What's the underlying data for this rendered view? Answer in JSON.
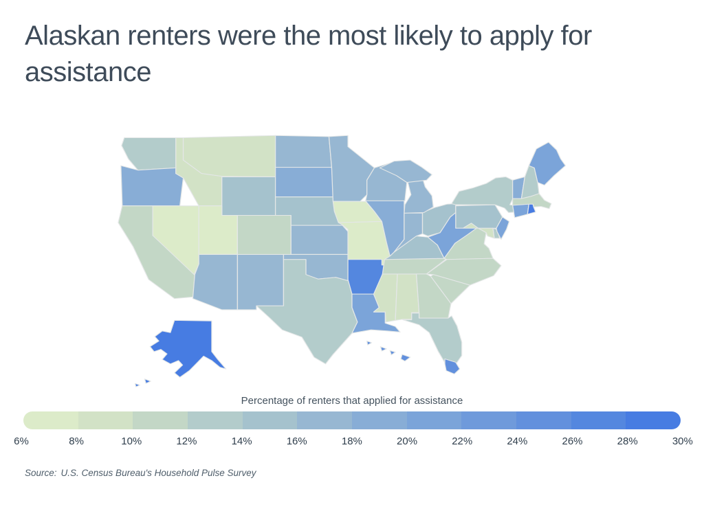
{
  "title": "Alaskan renters were the most likely to apply for assistance",
  "legend": {
    "caption": "Percentage of renters that applied for assistance",
    "min": 6,
    "max": 30,
    "bin_size": 2,
    "bin_colors": [
      "#dcebc9",
      "#d2e2c6",
      "#c3d7c6",
      "#b3cccb",
      "#a5c2cd",
      "#97b7d2",
      "#88add6",
      "#7ba4d9",
      "#6f9adb",
      "#6290dd",
      "#5487df",
      "#477ce2"
    ],
    "tick_labels": [
      "6%",
      "8%",
      "10%",
      "12%",
      "14%",
      "16%",
      "18%",
      "20%",
      "22%",
      "24%",
      "26%",
      "28%",
      "30%"
    ]
  },
  "source": {
    "prefix": "Source:",
    "text": "U.S. Census Bureau's Household Pulse Survey"
  },
  "colors": {
    "title_text": "#3e4b59",
    "caption_text": "#44525e",
    "tick_text": "#2f3e4c",
    "source_text": "#4e5d6a",
    "state_border": "#e4e7e7",
    "scale_low": "#dcebc9",
    "scale_high": "#477ce2",
    "background": "#ffffff"
  },
  "chart_data": {
    "type": "choropleth-map",
    "region": "United States (50 states)",
    "metric": "Percentage of renters that applied for assistance",
    "unit": "%",
    "range": [
      6,
      30
    ],
    "legend_position": "bottom",
    "highlight": "Alaska (highest)",
    "states": [
      {
        "code": "AK",
        "name": "Alaska",
        "value": 30
      },
      {
        "code": "AL",
        "name": "Alabama",
        "value": 9
      },
      {
        "code": "AR",
        "name": "Arkansas",
        "value": 27
      },
      {
        "code": "AZ",
        "name": "Arizona",
        "value": 16
      },
      {
        "code": "CA",
        "name": "California",
        "value": 11
      },
      {
        "code": "CO",
        "name": "Colorado",
        "value": 11
      },
      {
        "code": "CT",
        "name": "Connecticut",
        "value": 21
      },
      {
        "code": "DE",
        "name": "Delaware",
        "value": 12
      },
      {
        "code": "FL",
        "name": "Florida",
        "value": 12
      },
      {
        "code": "GA",
        "name": "Georgia",
        "value": 11
      },
      {
        "code": "HI",
        "name": "Hawaii",
        "value": 25
      },
      {
        "code": "IA",
        "name": "Iowa",
        "value": 7
      },
      {
        "code": "ID",
        "name": "Idaho",
        "value": 9
      },
      {
        "code": "IL",
        "name": "Illinois",
        "value": 19
      },
      {
        "code": "IN",
        "name": "Indiana",
        "value": 16
      },
      {
        "code": "KS",
        "name": "Kansas",
        "value": 17
      },
      {
        "code": "KY",
        "name": "Kentucky",
        "value": 14
      },
      {
        "code": "LA",
        "name": "Louisiana",
        "value": 21
      },
      {
        "code": "MA",
        "name": "Massachusetts",
        "value": 10
      },
      {
        "code": "MD",
        "name": "Maryland",
        "value": 8
      },
      {
        "code": "ME",
        "name": "Maine",
        "value": 21
      },
      {
        "code": "MI",
        "name": "Michigan",
        "value": 17
      },
      {
        "code": "MN",
        "name": "Minnesota",
        "value": 17
      },
      {
        "code": "MO",
        "name": "Missouri",
        "value": 7
      },
      {
        "code": "MS",
        "name": "Mississippi",
        "value": 9
      },
      {
        "code": "MT",
        "name": "Montana",
        "value": 9
      },
      {
        "code": "NC",
        "name": "North Carolina",
        "value": 11
      },
      {
        "code": "ND",
        "name": "North Dakota",
        "value": 17
      },
      {
        "code": "NE",
        "name": "Nebraska",
        "value": 14
      },
      {
        "code": "NH",
        "name": "New Hampshire",
        "value": 12
      },
      {
        "code": "NJ",
        "name": "New Jersey",
        "value": 20
      },
      {
        "code": "NM",
        "name": "New Mexico",
        "value": 16
      },
      {
        "code": "NV",
        "name": "Nevada",
        "value": 6
      },
      {
        "code": "NY",
        "name": "New York",
        "value": 13
      },
      {
        "code": "OH",
        "name": "Ohio",
        "value": 14
      },
      {
        "code": "OK",
        "name": "Oklahoma",
        "value": 16
      },
      {
        "code": "OR",
        "name": "Oregon",
        "value": 19
      },
      {
        "code": "PA",
        "name": "Pennsylvania",
        "value": 14
      },
      {
        "code": "RI",
        "name": "Rhode Island",
        "value": 28
      },
      {
        "code": "SC",
        "name": "South Carolina",
        "value": 10
      },
      {
        "code": "SD",
        "name": "South Dakota",
        "value": 19
      },
      {
        "code": "TN",
        "name": "Tennessee",
        "value": 11
      },
      {
        "code": "TX",
        "name": "Texas",
        "value": 13
      },
      {
        "code": "UT",
        "name": "Utah",
        "value": 7
      },
      {
        "code": "VA",
        "name": "Virginia",
        "value": 10
      },
      {
        "code": "VT",
        "name": "Vermont",
        "value": 19
      },
      {
        "code": "WA",
        "name": "Washington",
        "value": 13
      },
      {
        "code": "WI",
        "name": "Wisconsin",
        "value": 16
      },
      {
        "code": "WV",
        "name": "West Virginia",
        "value": 20
      },
      {
        "code": "WY",
        "name": "Wyoming",
        "value": 15
      }
    ]
  }
}
